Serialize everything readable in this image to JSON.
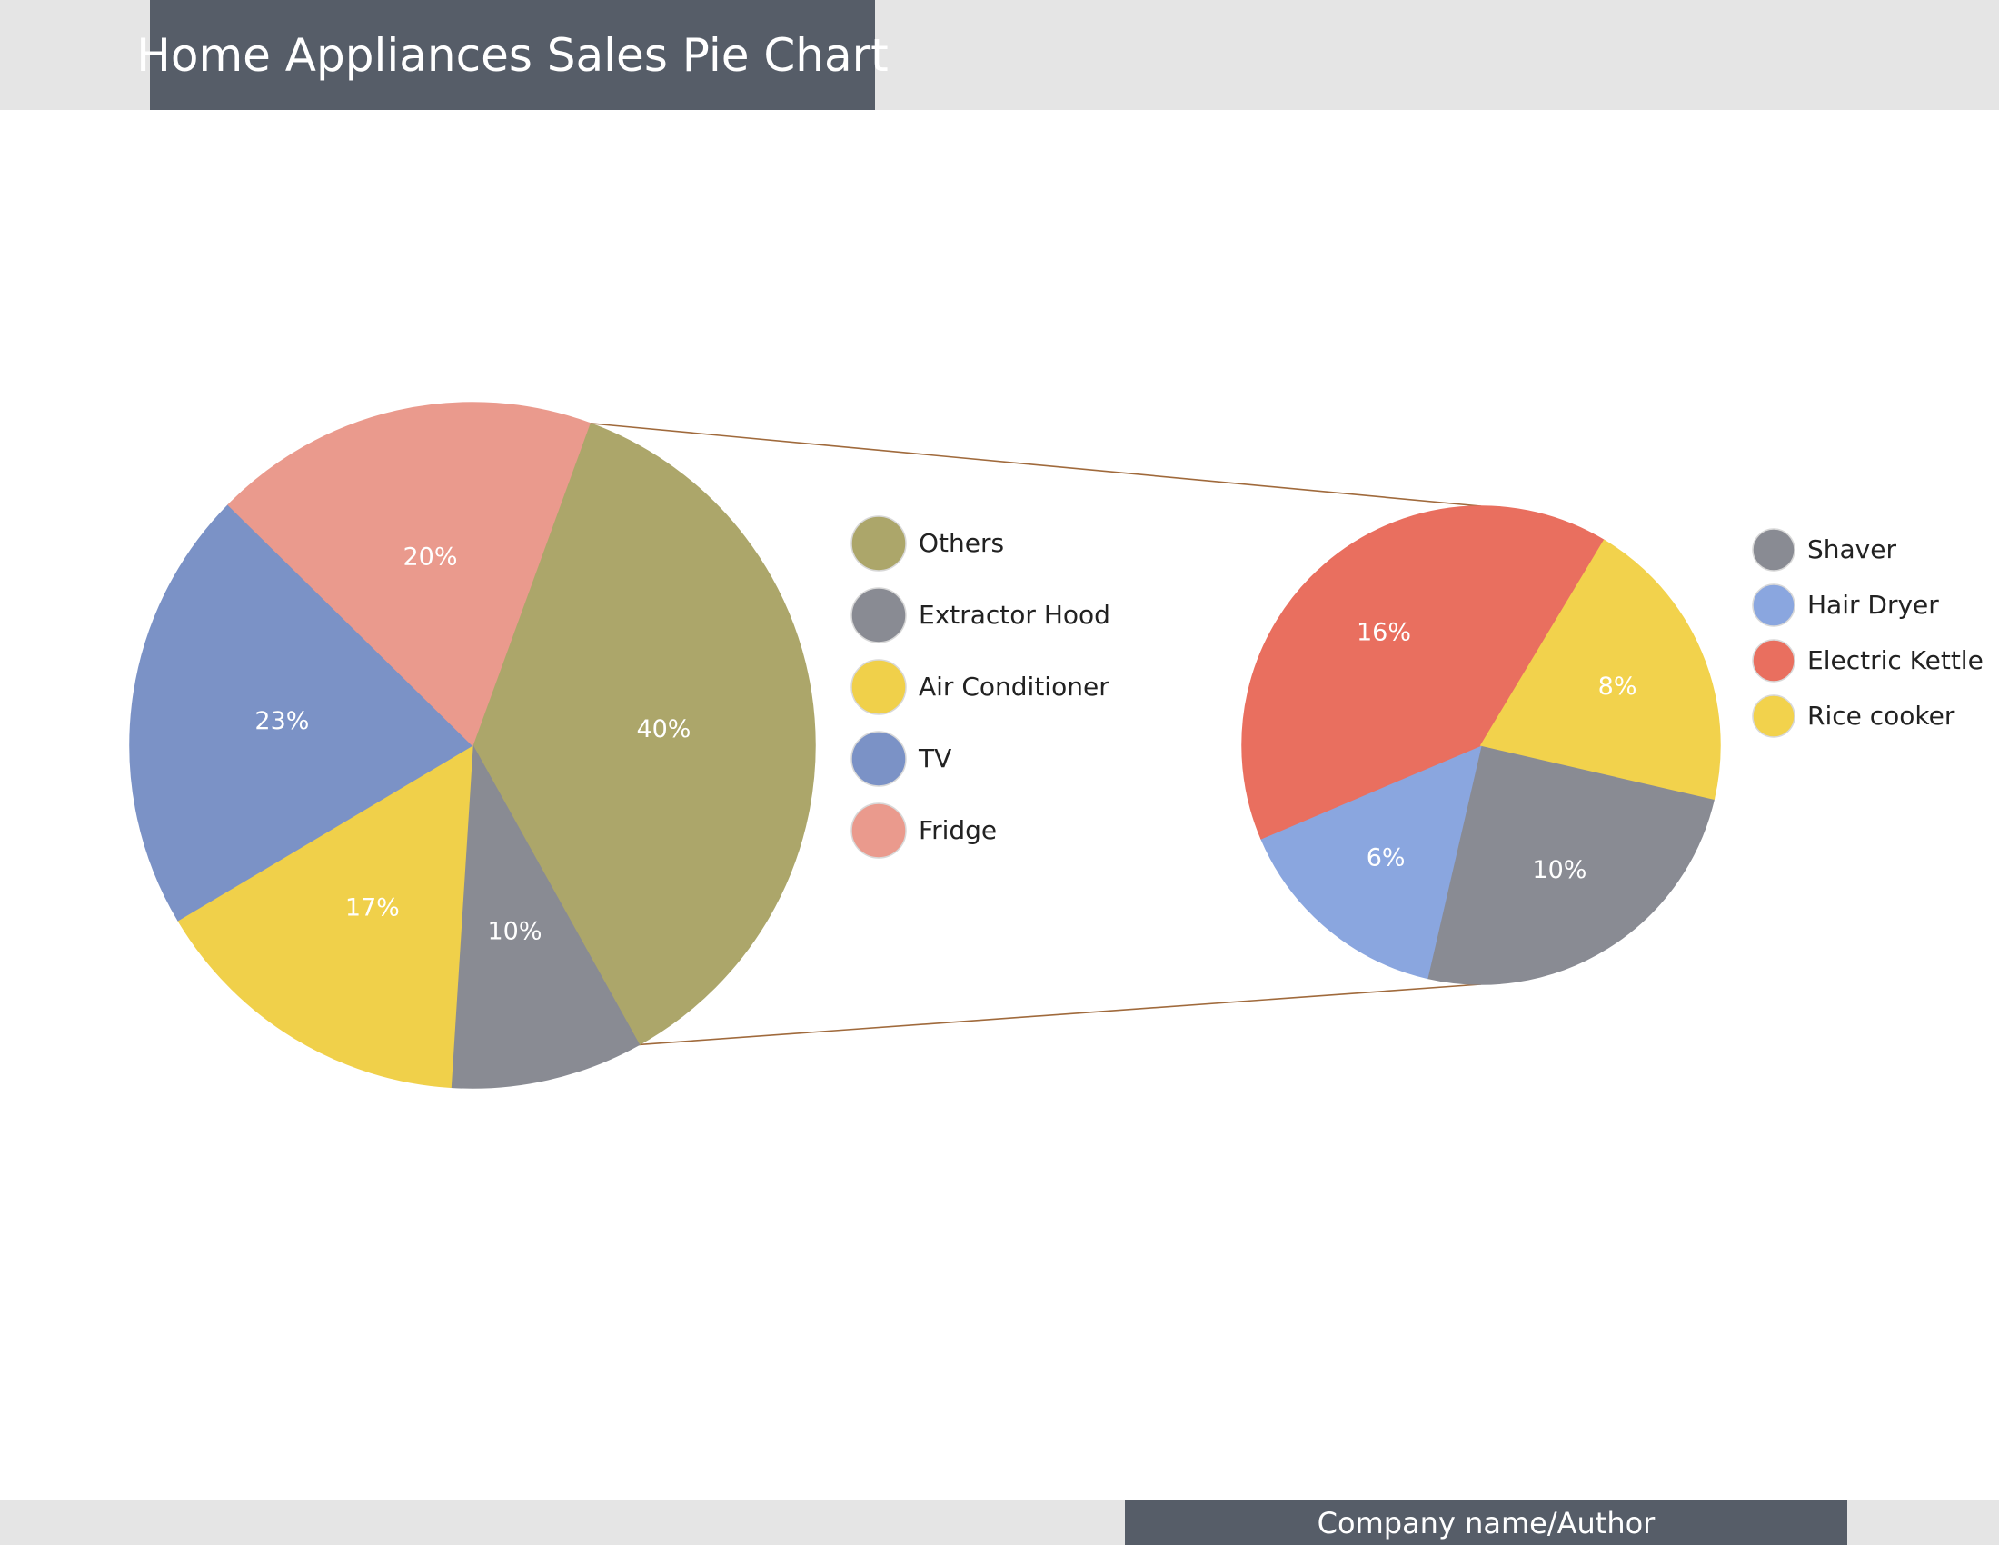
{
  "header": {
    "title": "Home Appliances Sales Pie Chart"
  },
  "footer": {
    "author": "Company name/Author"
  },
  "chart_data": [
    {
      "type": "pie",
      "slices": [
        {
          "label": "Others",
          "value": 40,
          "text": "40%",
          "color": "#aca66a"
        },
        {
          "label": "Extractor Hood",
          "value": 10,
          "text": "10%",
          "color": "#898b93"
        },
        {
          "label": "Air Conditioner",
          "value": 17,
          "text": "17%",
          "color": "#f0d04a"
        },
        {
          "label": "TV",
          "value": 23,
          "text": "23%",
          "color": "#7b92c6"
        },
        {
          "label": "Fridge",
          "value": 20,
          "text": "20%",
          "color": "#ea9a8d"
        }
      ],
      "legend": [
        "Others",
        "Extractor Hood",
        "Air Conditioner",
        "TV",
        "Fridge"
      ]
    },
    {
      "type": "pie",
      "slices": [
        {
          "label": "Shaver",
          "value": 10,
          "text": "10%",
          "color": "#898b93"
        },
        {
          "label": "Hair Dryer",
          "value": 6,
          "text": "6%",
          "color": "#8aa6df"
        },
        {
          "label": "Electric Kettle",
          "value": 16,
          "text": "16%",
          "color": "#e96f5f"
        },
        {
          "label": "Rice cooker",
          "value": 8,
          "text": "8%",
          "color": "#f2d24c"
        }
      ],
      "legend": [
        "Shaver",
        "Hair Dryer",
        "Electric Kettle",
        "Rice cooker"
      ]
    }
  ],
  "colors": {
    "header_bg": "#565d68",
    "band_bg": "#e5e5e5",
    "connector": "#a06a3c"
  }
}
